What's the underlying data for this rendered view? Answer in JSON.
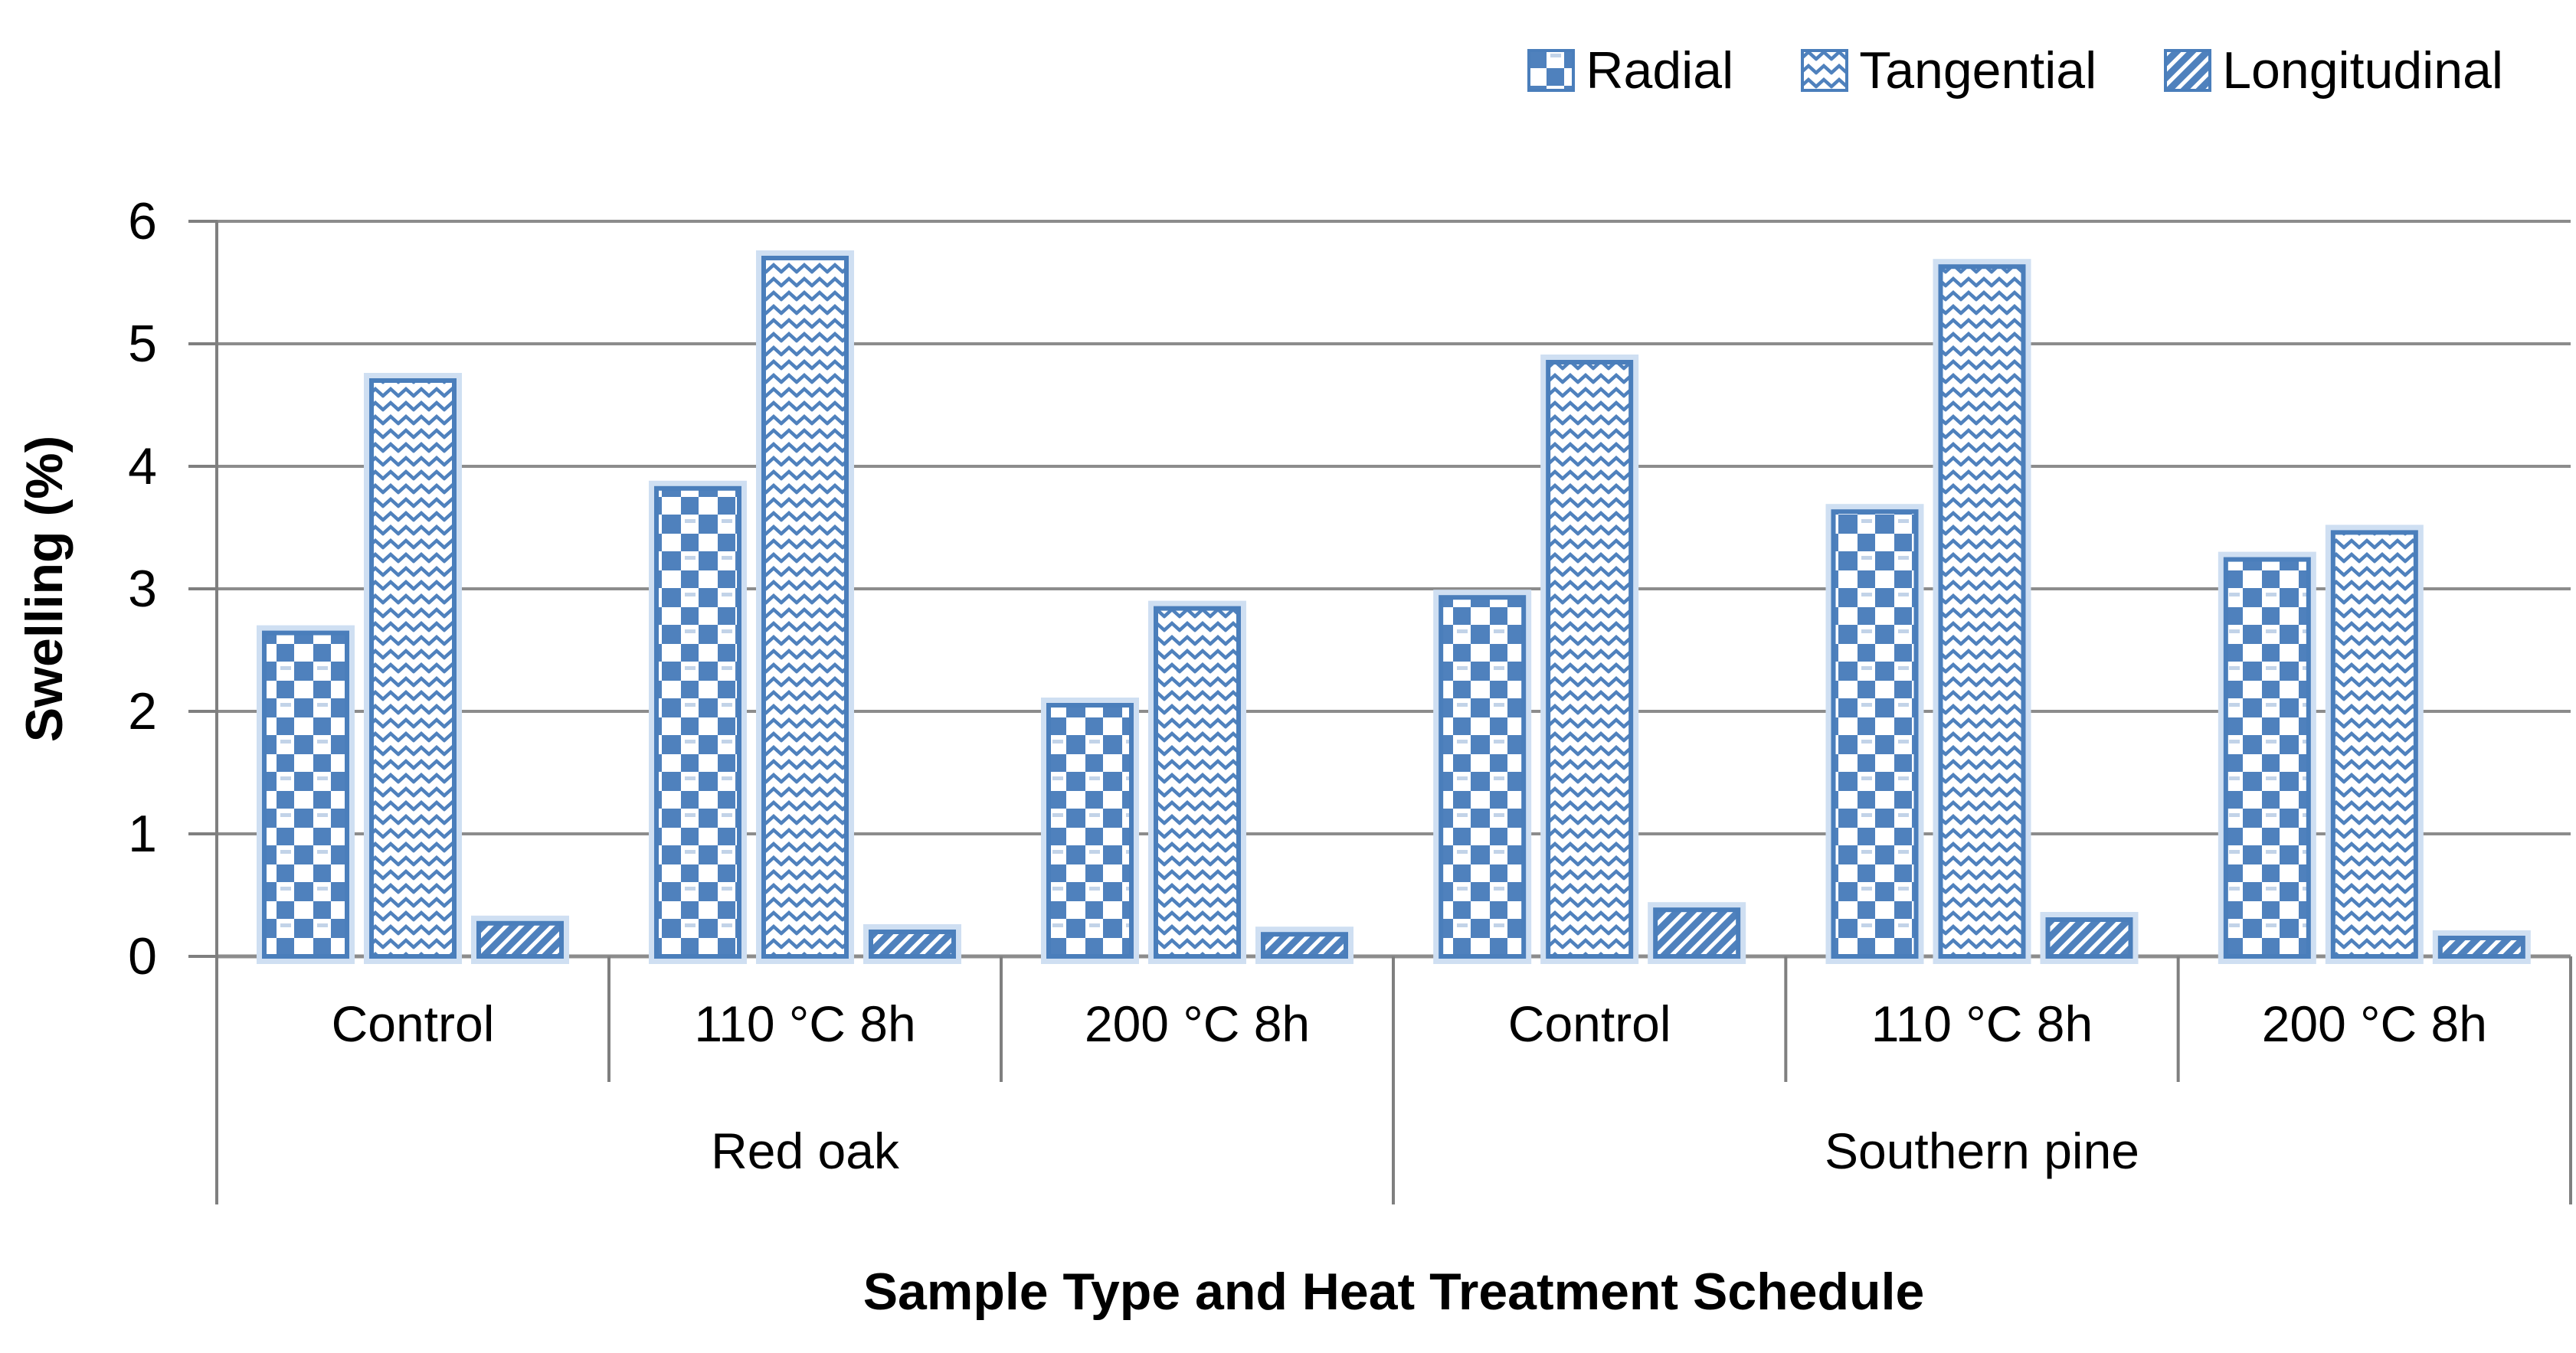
{
  "chart_data": {
    "type": "bar",
    "title": "",
    "xlabel": "Sample Type and Heat Treatment Schedule",
    "ylabel": "Swelling (%)",
    "ylim": [
      0,
      6
    ],
    "yticks": [
      "0",
      "1",
      "2",
      "3",
      "4",
      "5",
      "6"
    ],
    "grid": true,
    "legend_position": "top-right",
    "group_labels": [
      "Red oak",
      "Southern pine"
    ],
    "categories": [
      "Control",
      "110 °C 8h",
      "200 °C 8h",
      "Control",
      "110 °C 8h",
      "200 °C 8h"
    ],
    "series": [
      {
        "name": "Radial",
        "pattern": "checker",
        "values": [
          2.64,
          3.82,
          2.05,
          2.93,
          3.63,
          3.24
        ]
      },
      {
        "name": "Tangential",
        "pattern": "wave",
        "values": [
          4.7,
          5.7,
          2.84,
          4.85,
          5.63,
          3.46
        ]
      },
      {
        "name": "Longitudinal",
        "pattern": "diag",
        "values": [
          0.27,
          0.2,
          0.18,
          0.38,
          0.3,
          0.15
        ]
      }
    ]
  },
  "colors": {
    "bar_blue": "#4f81bd",
    "bar_border": "#4a7ebb",
    "bar_halo": "#cfdff2",
    "gridline": "#8c8c8c",
    "axis": "#7f7f7f",
    "text": "#000000",
    "background": "#ffffff"
  }
}
